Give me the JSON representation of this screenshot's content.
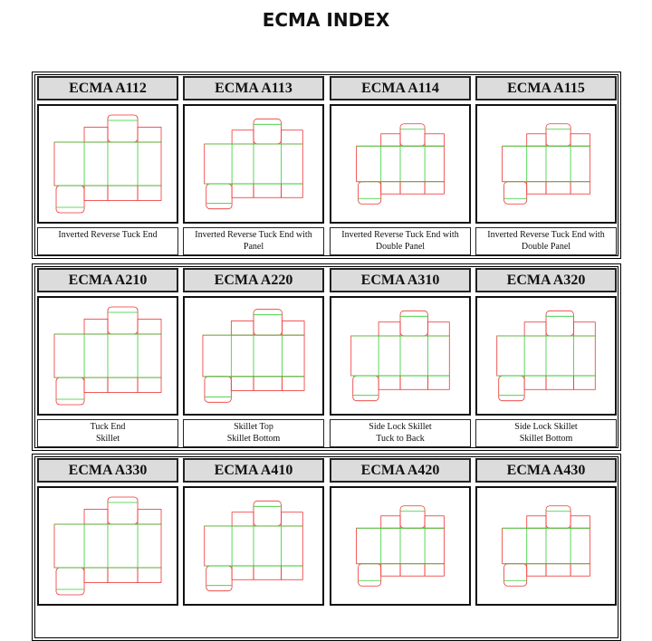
{
  "title": "ECMA INDEX",
  "groups": [
    {
      "items": [
        {
          "code": "ECMA A112",
          "description": [
            "Inverted Reverse Tuck End"
          ]
        },
        {
          "code": "ECMA A113",
          "description": [
            "Inverted Reverse Tuck End with",
            "Panel"
          ]
        },
        {
          "code": "ECMA A114",
          "description": [
            "Inverted Reverse Tuck End with",
            "Double Panel"
          ]
        },
        {
          "code": "ECMA A115",
          "description": [
            "Inverted Reverse Tuck End with",
            "Double Panel"
          ]
        }
      ]
    },
    {
      "items": [
        {
          "code": "ECMA A210",
          "description": [
            "Tuck End",
            "Skillet"
          ]
        },
        {
          "code": "ECMA A220",
          "description": [
            "Skillet Top",
            "Skillet Bottom"
          ]
        },
        {
          "code": "ECMA A310",
          "description": [
            "Side Lock Skillet",
            "Tuck to Back"
          ]
        },
        {
          "code": "ECMA A320",
          "description": [
            "Side Lock Skillet",
            "Skillet Bottom"
          ]
        }
      ]
    },
    {
      "items": [
        {
          "code": "ECMA A330"
        },
        {
          "code": "ECMA A410"
        },
        {
          "code": "ECMA A420"
        },
        {
          "code": "ECMA A430"
        }
      ]
    }
  ]
}
